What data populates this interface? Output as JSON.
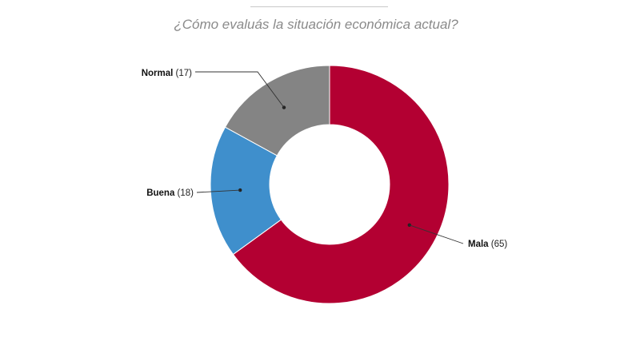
{
  "page": {
    "title": "¿Cómo evaluás la situación económica actual?"
  },
  "chart_data": {
    "type": "pie",
    "donut": true,
    "title": "¿Cómo evaluás la situación económica actual?",
    "slices": [
      {
        "label": "Mala",
        "value": 65,
        "value_text": "(65)",
        "color": "#b30032"
      },
      {
        "label": "Buena",
        "value": 18,
        "value_text": "(18)",
        "color": "#3f8fcc"
      },
      {
        "label": "Normal",
        "value": 17,
        "value_text": "(17)",
        "color": "#848484"
      }
    ],
    "start": "12 o'clock",
    "direction": "clockwise",
    "legend": "none",
    "labels": "outside with leader lines"
  }
}
